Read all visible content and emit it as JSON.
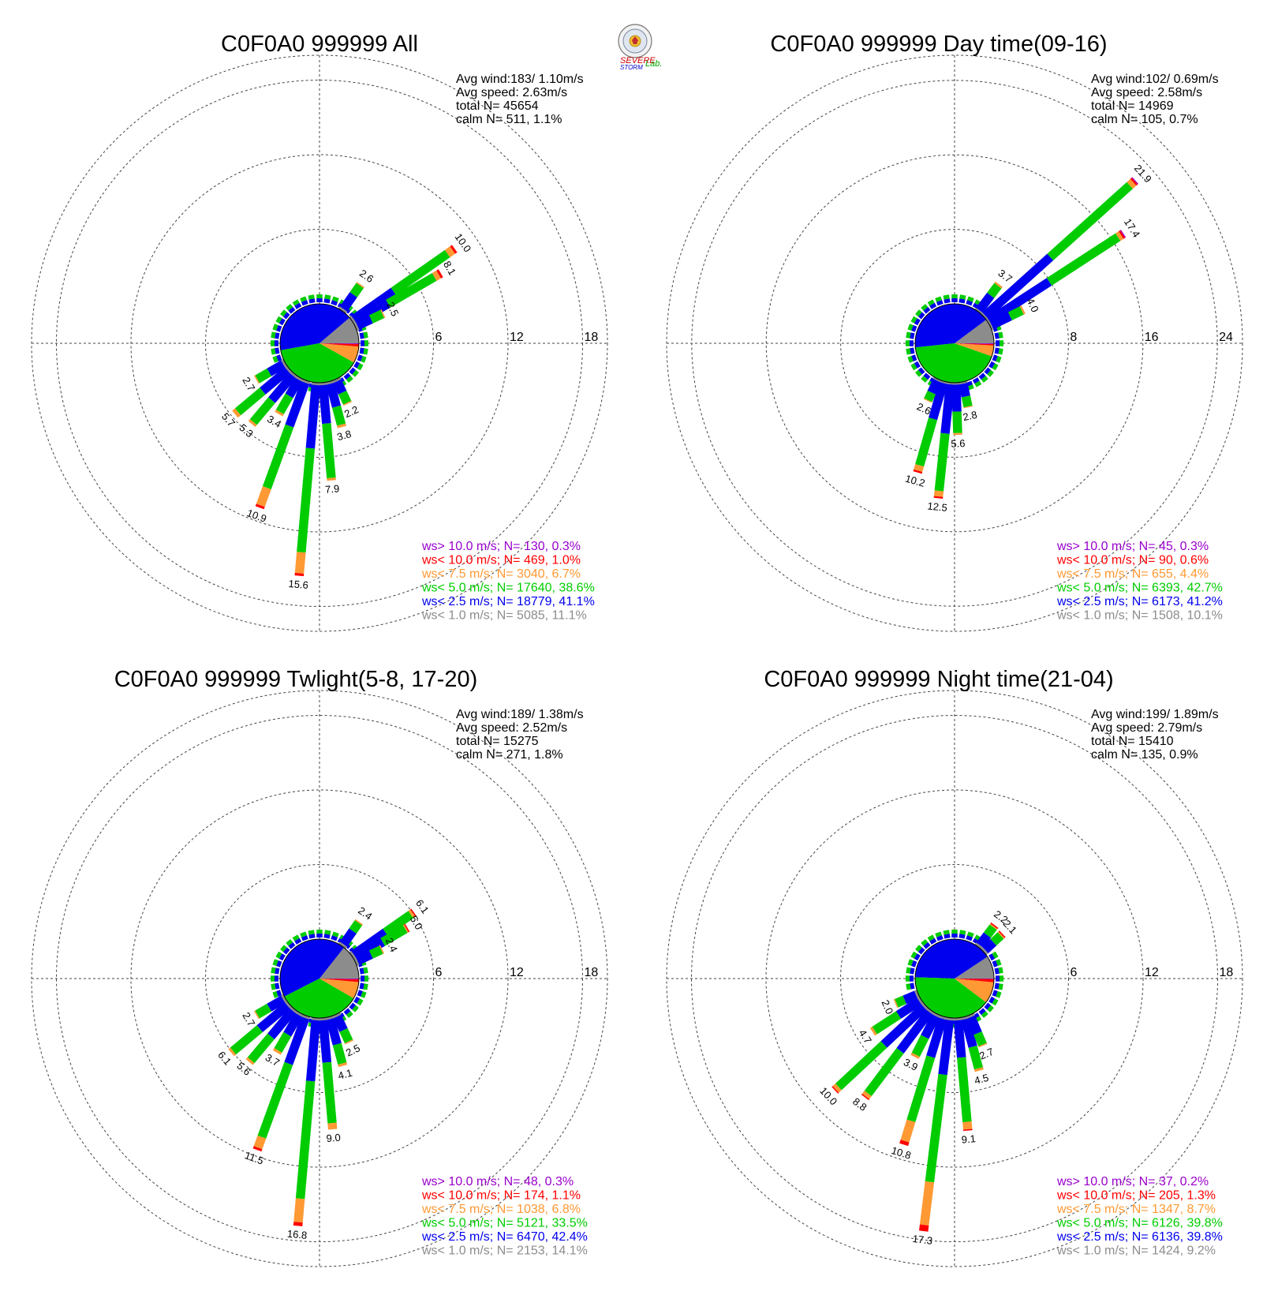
{
  "colors": {
    "lt1": "#8c8c8c",
    "lt25": "#0000ee",
    "lt5": "#00cc00",
    "lt75": "#ff9933",
    "lt10": "#ff0000",
    "gt10": "#9900cc"
  },
  "logo": {
    "line1": "SEVERE",
    "line2": "STORM",
    "line3": "Lab."
  },
  "stat_labels": {
    "avg_wind": "Avg wind:",
    "avg_speed": "Avg speed:",
    "total": "total N=",
    "calm": "calm N="
  },
  "chart_data": [
    {
      "type": "windrose",
      "title": "C0F0A0 999999 All",
      "stats": {
        "avg_wind": "183/ 1.10m/s",
        "avg_speed": "2.63m/s",
        "total_n": "45654",
        "calm_n": "511,",
        "calm_pct": "1.1%"
      },
      "ring_ticks": [
        "6",
        "12",
        "18"
      ],
      "rmax": 20,
      "legend": [
        {
          "label": "ws> 10.0 m/s; N=",
          "n": "130,",
          "pct": "0.3%",
          "color": "#9900cc"
        },
        {
          "label": "ws< 10.0 m/s; N=",
          "n": "469,",
          "pct": "1.0%",
          "color": "#ff0000"
        },
        {
          "label": "ws<  7.5 m/s; N=",
          "n": "3040,",
          "pct": "6.7%",
          "color": "#ff9933"
        },
        {
          "label": "ws<  5.0 m/s; N=",
          "n": "17640,",
          "pct": "38.6%",
          "color": "#00cc00"
        },
        {
          "label": "ws<  2.5 m/s; N=",
          "n": "18779,",
          "pct": "41.1%",
          "color": "#0000ee"
        },
        {
          "label": "ws<  1.0 m/s; N=",
          "n": "5085,",
          "pct": "11.1%",
          "color": "#8c8c8c"
        }
      ],
      "pie": [
        11.1,
        41.1,
        38.6,
        6.7,
        1.0,
        0.3
      ],
      "bars": [
        {
          "dir": 55,
          "segments": [
            0.2,
            3.9,
            5.3,
            0.5,
            0.2,
            0
          ],
          "label": "10.0"
        },
        {
          "dir": 60,
          "segments": [
            0.2,
            3.0,
            4.3,
            0.4,
            0.2,
            0
          ],
          "label": "8.1"
        },
        {
          "dir": 35,
          "segments": [
            0.2,
            1.4,
            0.9,
            0.1,
            0,
            0
          ],
          "label": "2.6"
        },
        {
          "dir": 65,
          "segments": [
            0.2,
            1.2,
            1.0,
            0.1,
            0,
            0
          ],
          "label": "2.5"
        },
        {
          "dir": 175,
          "segments": [
            0.2,
            3.1,
            4.4,
            0.2,
            0,
            0
          ],
          "label": "7.9"
        },
        {
          "dir": 185,
          "segments": [
            0.2,
            5.1,
            8.4,
            1.7,
            0.2,
            0
          ],
          "label": "15.6"
        },
        {
          "dir": 200,
          "segments": [
            0.2,
            3.7,
            5.3,
            1.5,
            0.2,
            0
          ],
          "label": "10.9"
        },
        {
          "dir": 165,
          "segments": [
            0.2,
            1.9,
            1.5,
            0.2,
            0,
            0
          ],
          "label": "3.8"
        },
        {
          "dir": 155,
          "segments": [
            0.2,
            1.0,
            0.9,
            0.1,
            0,
            0
          ],
          "label": "2.2"
        },
        {
          "dir": 210,
          "segments": [
            0.2,
            1.5,
            1.5,
            0.2,
            0,
            0
          ],
          "label": "3.4"
        },
        {
          "dir": 220,
          "segments": [
            0.2,
            2.6,
            2.3,
            0.2,
            0,
            0
          ],
          "label": "5.3"
        },
        {
          "dir": 230,
          "segments": [
            0.2,
            2.6,
            2.6,
            0.3,
            0,
            0
          ],
          "label": "5.7"
        },
        {
          "dir": 240,
          "segments": [
            0.2,
            1.3,
            1.1,
            0.1,
            0,
            0
          ],
          "label": "2.7"
        }
      ]
    },
    {
      "type": "windrose",
      "title": "C0F0A0 999999 Day time(09-16)",
      "stats": {
        "avg_wind": "102/ 0.69m/s",
        "avg_speed": "2.58m/s",
        "total_n": "14969",
        "calm_n": "105,",
        "calm_pct": "0.7%"
      },
      "ring_ticks": [
        "8",
        "16",
        "24"
      ],
      "rmax": 26.7,
      "legend": [
        {
          "label": "ws> 10.0 m/s; N=",
          "n": "45,",
          "pct": "0.3%",
          "color": "#9900cc"
        },
        {
          "label": "ws< 10.0 m/s; N=",
          "n": "90,",
          "pct": "0.6%",
          "color": "#ff0000"
        },
        {
          "label": "ws<  7.5 m/s; N=",
          "n": "655,",
          "pct": "4.4%",
          "color": "#ff9933"
        },
        {
          "label": "ws<  5.0 m/s; N=",
          "n": "6393,",
          "pct": "42.7%",
          "color": "#00cc00"
        },
        {
          "label": "ws<  2.5 m/s; N=",
          "n": "6173,",
          "pct": "41.2%",
          "color": "#0000ee"
        },
        {
          "label": "ws<  1.0 m/s; N=",
          "n": "1508,",
          "pct": "10.1%",
          "color": "#8c8c8c"
        }
      ],
      "pie": [
        10.1,
        41.2,
        42.7,
        4.4,
        0.6,
        0.3
      ],
      "bars": [
        {
          "dir": 48,
          "segments": [
            0.2,
            9.4,
            11.5,
            0.5,
            0.2,
            0.1
          ],
          "label": "21.9"
        },
        {
          "dir": 57,
          "segments": [
            0.2,
            7.7,
            8.8,
            0.4,
            0.2,
            0.1
          ],
          "label": "17.4"
        },
        {
          "dir": 37,
          "segments": [
            0.2,
            2.0,
            1.3,
            0.2,
            0,
            0
          ],
          "label": "3.7"
        },
        {
          "dir": 64,
          "segments": [
            0.2,
            2.2,
            1.4,
            0.2,
            0,
            0
          ],
          "label": "4.0"
        },
        {
          "dir": 178,
          "segments": [
            0.2,
            2.9,
            2.3,
            0.2,
            0,
            0
          ],
          "label": "5.6"
        },
        {
          "dir": 186,
          "segments": [
            0.2,
            5.3,
            6.2,
            0.6,
            0.2,
            0
          ],
          "label": "12.5"
        },
        {
          "dir": 196,
          "segments": [
            0.2,
            4.0,
            5.2,
            0.6,
            0.2,
            0
          ],
          "label": "10.2"
        },
        {
          "dir": 168,
          "segments": [
            0.2,
            1.4,
            1.1,
            0.1,
            0,
            0
          ],
          "label": "2.8"
        },
        {
          "dir": 205,
          "segments": [
            0.2,
            1.4,
            0.9,
            0.1,
            0,
            0
          ],
          "label": "2.6"
        }
      ]
    },
    {
      "type": "windrose",
      "title": "C0F0A0 999999 Twlight(5-8, 17-20)",
      "stats": {
        "avg_wind": "189/ 1.38m/s",
        "avg_speed": "2.52m/s",
        "total_n": "15275",
        "calm_n": "271,",
        "calm_pct": "1.8%"
      },
      "ring_ticks": [
        "6",
        "12",
        "18"
      ],
      "rmax": 20,
      "legend": [
        {
          "label": "ws> 10.0 m/s; N=",
          "n": "48,",
          "pct": "0.3%",
          "color": "#9900cc"
        },
        {
          "label": "ws< 10.0 m/s; N=",
          "n": "174,",
          "pct": "1.1%",
          "color": "#ff0000"
        },
        {
          "label": "ws<  7.5 m/s; N=",
          "n": "1038,",
          "pct": "6.8%",
          "color": "#ff9933"
        },
        {
          "label": "ws<  5.0 m/s; N=",
          "n": "5121,",
          "pct": "33.5%",
          "color": "#00cc00"
        },
        {
          "label": "ws<  2.5 m/s; N=",
          "n": "6470,",
          "pct": "42.4%",
          "color": "#0000ee"
        },
        {
          "label": "ws<  1.0 m/s; N=",
          "n": "2153,",
          "pct": "14.1%",
          "color": "#8c8c8c"
        }
      ],
      "pie": [
        14.1,
        42.4,
        33.5,
        6.8,
        1.1,
        0.3
      ],
      "bars": [
        {
          "dir": 55,
          "segments": [
            0.2,
            3.1,
            2.5,
            0.2,
            0.1,
            0
          ],
          "label": "6.1"
        },
        {
          "dir": 60,
          "segments": [
            0.2,
            2.5,
            2.1,
            0.1,
            0.1,
            0
          ],
          "label": "5.0"
        },
        {
          "dir": 35,
          "segments": [
            0.2,
            1.3,
            0.8,
            0.1,
            0,
            0
          ],
          "label": "2.4"
        },
        {
          "dir": 65,
          "segments": [
            0.2,
            1.2,
            0.9,
            0.1,
            0,
            0
          ],
          "label": "2.4"
        },
        {
          "dir": 175,
          "segments": [
            0.2,
            3.4,
            4.9,
            0.5,
            0,
            0
          ],
          "label": "9.0"
        },
        {
          "dir": 185,
          "segments": [
            0.2,
            4.9,
            9.5,
            1.9,
            0.3,
            0
          ],
          "label": "16.8"
        },
        {
          "dir": 200,
          "segments": [
            0.2,
            3.9,
            6.3,
            0.9,
            0.2,
            0
          ],
          "label": "11.5"
        },
        {
          "dir": 165,
          "segments": [
            0.2,
            2.1,
            1.6,
            0.2,
            0,
            0
          ],
          "label": "4.1"
        },
        {
          "dir": 155,
          "segments": [
            0.2,
            1.2,
            1.0,
            0.1,
            0,
            0
          ],
          "label": "2.5"
        },
        {
          "dir": 210,
          "segments": [
            0.2,
            1.8,
            1.5,
            0.2,
            0,
            0
          ],
          "label": "3.7"
        },
        {
          "dir": 220,
          "segments": [
            0.2,
            2.7,
            2.5,
            0.2,
            0,
            0
          ],
          "label": "5.6"
        },
        {
          "dir": 230,
          "segments": [
            0.2,
            2.9,
            2.8,
            0.2,
            0,
            0
          ],
          "label": "6.1"
        },
        {
          "dir": 240,
          "segments": [
            0.2,
            1.3,
            1.1,
            0.1,
            0,
            0
          ],
          "label": "2.7"
        }
      ]
    },
    {
      "type": "windrose",
      "title": "C0F0A0 999999 Night time(21-04)",
      "stats": {
        "avg_wind": "199/ 1.89m/s",
        "avg_speed": "2.79m/s",
        "total_n": "15410",
        "calm_n": "135,",
        "calm_pct": "0.9%"
      },
      "ring_ticks": [
        "6",
        "12",
        "18"
      ],
      "rmax": 20,
      "legend": [
        {
          "label": "ws> 10.0 m/s; N=",
          "n": "37,",
          "pct": "0.2%",
          "color": "#9900cc"
        },
        {
          "label": "ws< 10.0 m/s; N=",
          "n": "205,",
          "pct": "1.3%",
          "color": "#ff0000"
        },
        {
          "label": "ws<  7.5 m/s; N=",
          "n": "1347,",
          "pct": "8.7%",
          "color": "#ff9933"
        },
        {
          "label": "ws<  5.0 m/s; N=",
          "n": "6126,",
          "pct": "39.8%",
          "color": "#00cc00"
        },
        {
          "label": "ws<  2.5 m/s; N=",
          "n": "6136,",
          "pct": "39.8%",
          "color": "#0000ee"
        },
        {
          "label": "ws<  1.0 m/s; N=",
          "n": "1424,",
          "pct": "9.2%",
          "color": "#8c8c8c"
        }
      ],
      "pie": [
        9.2,
        39.8,
        39.8,
        8.7,
        1.3,
        0.2
      ],
      "bars": [
        {
          "dir": 37,
          "segments": [
            0.2,
            1.0,
            0.8,
            0.1,
            0.1,
            0
          ],
          "label": "2.2"
        },
        {
          "dir": 47,
          "segments": [
            0.2,
            0.9,
            0.8,
            0.1,
            0.1,
            0
          ],
          "label": "2.1"
        },
        {
          "dir": 175,
          "segments": [
            0.2,
            3.0,
            5.2,
            0.6,
            0.1,
            0
          ],
          "label": "9.1"
        },
        {
          "dir": 187,
          "segments": [
            0.2,
            4.4,
            8.7,
            3.5,
            0.5,
            0
          ],
          "label": "17.3"
        },
        {
          "dir": 197,
          "segments": [
            0.2,
            3.2,
            5.4,
            1.7,
            0.3,
            0
          ],
          "label": "10.8"
        },
        {
          "dir": 165,
          "segments": [
            0.2,
            2.3,
            1.8,
            0.2,
            0,
            0
          ],
          "label": "4.5"
        },
        {
          "dir": 157,
          "segments": [
            0.2,
            1.4,
            1.0,
            0.1,
            0,
            0
          ],
          "label": "2.7"
        },
        {
          "dir": 207,
          "segments": [
            0.2,
            1.9,
            1.6,
            0.2,
            0,
            0
          ],
          "label": "3.9"
        },
        {
          "dir": 217,
          "segments": [
            0.2,
            3.9,
            4.3,
            0.3,
            0.1,
            0
          ],
          "label": "8.8"
        },
        {
          "dir": 227,
          "segments": [
            0.2,
            4.4,
            5.0,
            0.3,
            0.1,
            0
          ],
          "label": "10.0"
        },
        {
          "dir": 237,
          "segments": [
            0.2,
            2.0,
            2.3,
            0.2,
            0,
            0
          ],
          "label": "4.7"
        },
        {
          "dir": 247,
          "segments": [
            0.2,
            1.0,
            0.7,
            0.1,
            0,
            0
          ],
          "label": "2.0"
        }
      ]
    }
  ]
}
